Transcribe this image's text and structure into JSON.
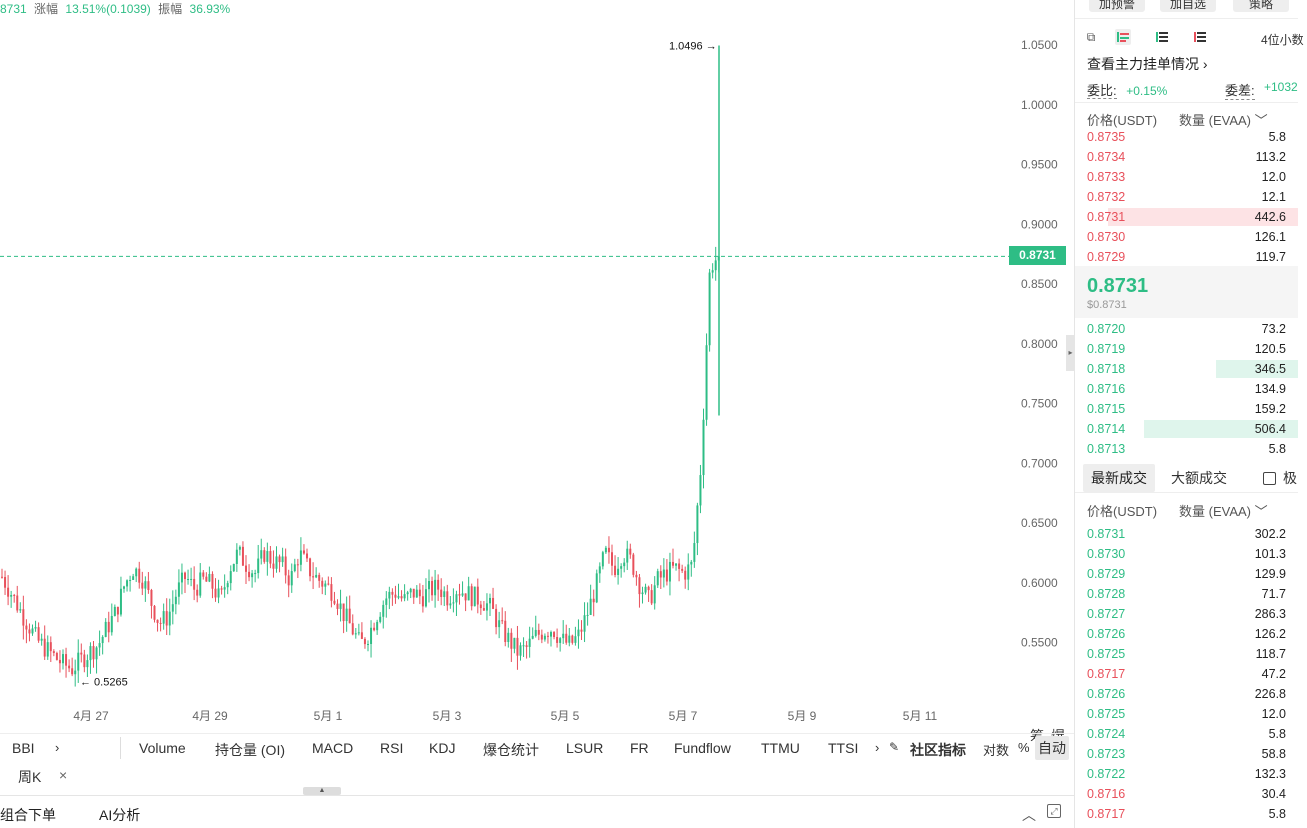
{
  "header": {
    "price_fragment": "8731",
    "change_label": "涨幅",
    "change_value": "13.51%(0.1039)",
    "amplitude_label": "振幅",
    "amplitude_value": "36.93%"
  },
  "chart": {
    "y_ticks": [
      "1.0500",
      "1.0000",
      "0.9500",
      "0.9000",
      "0.8500",
      "0.8000",
      "0.7500",
      "0.7000",
      "0.6500",
      "0.6000",
      "0.5500"
    ],
    "x_ticks": [
      "4月 27",
      "4月 29",
      "5月 1",
      "5月 3",
      "5月 5",
      "5月 7",
      "5月 9",
      "5月 11"
    ],
    "last_price_tag": "0.8731",
    "high_annotation": "1.0496",
    "low_annotation": "0.5265",
    "chip_label": "筹",
    "liq_label": "爆"
  },
  "chart_data": {
    "type": "candlestick",
    "ylim": [
      0.52,
      1.06
    ],
    "last_price": 0.8731,
    "high": 1.0496,
    "low": 0.5265,
    "close_path": [
      0.605,
      0.592,
      0.578,
      0.565,
      0.552,
      0.545,
      0.538,
      0.532,
      0.528,
      0.535,
      0.542,
      0.548,
      0.562,
      0.575,
      0.598,
      0.612,
      0.605,
      0.585,
      0.566,
      0.572,
      0.592,
      0.605,
      0.595,
      0.602,
      0.598,
      0.585,
      0.612,
      0.625,
      0.615,
      0.608,
      0.625,
      0.618,
      0.615,
      0.602,
      0.625,
      0.612,
      0.604,
      0.598,
      0.592,
      0.575,
      0.562,
      0.548,
      0.558,
      0.575,
      0.588,
      0.592,
      0.585,
      0.592,
      0.588,
      0.594,
      0.596,
      0.588,
      0.595,
      0.592,
      0.588,
      0.585,
      0.578,
      0.562,
      0.552,
      0.542,
      0.545,
      0.555,
      0.56,
      0.562,
      0.552,
      0.548,
      0.556,
      0.575,
      0.598,
      0.625,
      0.612,
      0.625,
      0.618,
      0.598,
      0.585,
      0.602,
      0.608,
      0.612,
      0.608,
      0.615,
      0.702,
      0.865,
      0.8731
    ]
  },
  "indicators": {
    "left": "BBI",
    "items": [
      "Volume",
      "持仓量 (OI)",
      "MACD",
      "RSI",
      "KDJ",
      "爆仓统计",
      "LSUR",
      "FR",
      "Fundflow",
      "TTMU",
      "TTSI"
    ],
    "community": "社区指标",
    "log": "对数",
    "percent": "%",
    "auto": "自动"
  },
  "period": {
    "label": "周K",
    "close": "×"
  },
  "bottom": {
    "tab1": "组合下单",
    "tab2": "AI分析"
  },
  "right_panel": {
    "btn_alert": "加预警",
    "btn_watchlist": "加自选",
    "btn_strategy": "策略",
    "decimals": "4位小数",
    "main_orders": "查看主力挂单情况 ›",
    "wei_bi_label": "委比:",
    "wei_bi_value": "+0.15%",
    "wei_cha_label": "委差:",
    "wei_cha_value": "+1032",
    "col_price": "价格(USDT)",
    "col_qty": "数量 (EVAA) ﹀",
    "asks": [
      {
        "p": "0.8735",
        "q": "5.8",
        "depth": 0
      },
      {
        "p": "0.8734",
        "q": "113.2",
        "depth": 0
      },
      {
        "p": "0.8733",
        "q": "12.0",
        "depth": 0
      },
      {
        "p": "0.8732",
        "q": "12.1",
        "depth": 0
      },
      {
        "p": "0.8731",
        "q": "442.6",
        "depth": 0.85
      },
      {
        "p": "0.8730",
        "q": "126.1",
        "depth": 0
      },
      {
        "p": "0.8729",
        "q": "119.7",
        "depth": 0
      }
    ],
    "mid_price": "0.8731",
    "mid_usd": "$0.8731",
    "bids": [
      {
        "p": "0.8720",
        "q": "73.2",
        "depth": 0
      },
      {
        "p": "0.8719",
        "q": "120.5",
        "depth": 0
      },
      {
        "p": "0.8718",
        "q": "346.5",
        "depth": 0.37
      },
      {
        "p": "0.8716",
        "q": "134.9",
        "depth": 0
      },
      {
        "p": "0.8715",
        "q": "159.2",
        "depth": 0
      },
      {
        "p": "0.8714",
        "q": "506.4",
        "depth": 0.69
      },
      {
        "p": "0.8713",
        "q": "5.8",
        "depth": 0
      }
    ],
    "tab_latest": "最新成交",
    "tab_large": "大额成交",
    "tab_extreme": "极",
    "trades": [
      {
        "p": "0.8731",
        "q": "302.2",
        "side": "up"
      },
      {
        "p": "0.8730",
        "q": "101.3",
        "side": "up"
      },
      {
        "p": "0.8729",
        "q": "129.9",
        "side": "up"
      },
      {
        "p": "0.8728",
        "q": "71.7",
        "side": "up"
      },
      {
        "p": "0.8727",
        "q": "286.3",
        "side": "up"
      },
      {
        "p": "0.8726",
        "q": "126.2",
        "side": "up"
      },
      {
        "p": "0.8725",
        "q": "118.7",
        "side": "up"
      },
      {
        "p": "0.8717",
        "q": "47.2",
        "side": "down"
      },
      {
        "p": "0.8726",
        "q": "226.8",
        "side": "up"
      },
      {
        "p": "0.8725",
        "q": "12.0",
        "side": "up"
      },
      {
        "p": "0.8724",
        "q": "5.8",
        "side": "up"
      },
      {
        "p": "0.8723",
        "q": "58.8",
        "side": "up"
      },
      {
        "p": "0.8722",
        "q": "132.3",
        "side": "up"
      },
      {
        "p": "0.8716",
        "q": "30.4",
        "side": "down"
      },
      {
        "p": "0.8717",
        "q": "5.8",
        "side": "down"
      }
    ]
  },
  "colors": {
    "up": "#2ebd85",
    "down": "#e8505b"
  }
}
